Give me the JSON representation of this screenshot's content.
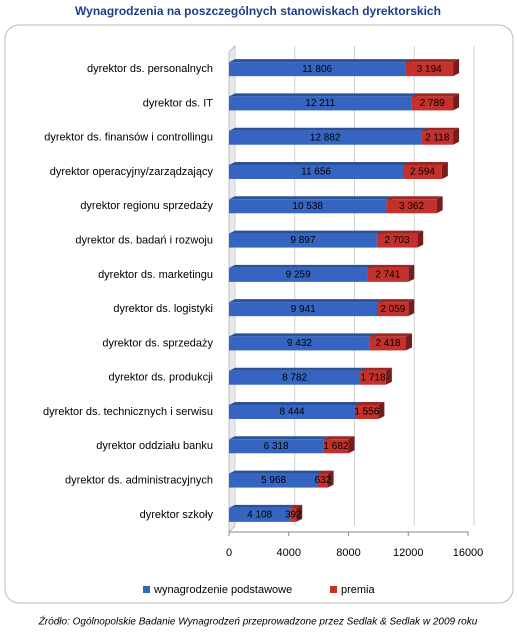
{
  "chart_data": {
    "type": "bar",
    "orientation": "horizontal",
    "stacked": true,
    "title": "Wynagrodzenia na poszczególnych stanowiskach dyrektorskich",
    "categories": [
      "dyrektor ds. personalnych",
      "dyrektor ds. IT",
      "dyrektor ds. finansów i controllingu",
      "dyrektor operacyjny/zarządzający",
      "dyrektor regionu sprzedaży",
      "dyrektor ds. badań i rozwoju",
      "dyrektor ds. marketingu",
      "dyrektor ds. logistyki",
      "dyrektor ds. sprzedaży",
      "dyrektor ds. produkcji",
      "dyrektor ds. technicznych i serwisu",
      "dyrektor oddziału banku",
      "dyrektor ds. administracyjnych",
      "dyrektor szkoły"
    ],
    "series": [
      {
        "name": "wynagrodzenie podstawowe",
        "color": "#3565c0",
        "values": [
          11806,
          12211,
          12882,
          11656,
          10538,
          9897,
          9259,
          9941,
          9432,
          8782,
          8444,
          6318,
          5968,
          4108
        ],
        "value_labels": [
          "11 806",
          "12 211",
          "12 882",
          "11 656",
          "10 538",
          "9 897",
          "9 259",
          "9 941",
          "9 432",
          "8 782",
          "8 444",
          "6 318",
          "5 968",
          "4 108"
        ]
      },
      {
        "name": "premia",
        "color": "#c4302b",
        "values": [
          3194,
          2789,
          2118,
          2594,
          3362,
          2703,
          2741,
          2059,
          2418,
          1718,
          1556,
          1682,
          632,
          392
        ],
        "value_labels": [
          "3 194",
          "2 789",
          "2 118",
          "2 594",
          "3 362",
          "2 703",
          "2 741",
          "2 059",
          "2 418",
          "1 718",
          "1 556",
          "1 682",
          "632",
          "392"
        ]
      }
    ],
    "xlim": [
      0,
      16000
    ],
    "xticks": [
      0,
      4000,
      8000,
      12000,
      16000
    ],
    "grid": true,
    "legend": "bottom",
    "source": "Źródło: Ogólnopolskie Badanie Wynagrodzeń przeprowadzone przez Sedlak & Sedlak w 2009 roku"
  }
}
